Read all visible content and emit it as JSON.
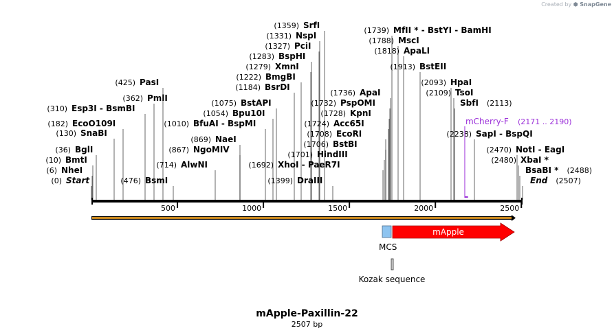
{
  "credit": {
    "prefix": "Created by",
    "brand": "SnapGene"
  },
  "plasmid": {
    "name": "mApple-Paxillin-22",
    "length_label": "2507 bp",
    "length": 2507
  },
  "ruler": {
    "ticks": [
      500,
      1000,
      1500,
      2000,
      2500
    ]
  },
  "sites": [
    {
      "name": "Start",
      "pos": 0,
      "pos_label": "(0)",
      "italic": true
    },
    {
      "name": "NheI",
      "pos": 6,
      "pos_label": "(6)"
    },
    {
      "name": "BmtI",
      "pos": 10,
      "pos_label": "(10)"
    },
    {
      "name": "BglI",
      "pos": 36,
      "pos_label": "(36)"
    },
    {
      "name": "SnaBI",
      "pos": 130,
      "pos_label": "(130)"
    },
    {
      "name": "EcoO109I",
      "pos": 182,
      "pos_label": "(182)"
    },
    {
      "name": "Esp3I  -  BsmBI",
      "pos": 310,
      "pos_label": "(310)"
    },
    {
      "name": "PmlI",
      "pos": 362,
      "pos_label": "(362)"
    },
    {
      "name": "PasI",
      "pos": 425,
      "pos_label": "(425)"
    },
    {
      "name": "BsmI",
      "pos": 476,
      "pos_label": "(476)"
    },
    {
      "name": "AlwNI",
      "pos": 714,
      "pos_label": "(714)"
    },
    {
      "name": "NgoMIV",
      "pos": 867,
      "pos_label": "(867)"
    },
    {
      "name": "NaeI",
      "pos": 869,
      "pos_label": "(869)"
    },
    {
      "name": "BfuAI  -  BspMI",
      "pos": 1010,
      "pos_label": "(1010)"
    },
    {
      "name": "Bpu10I",
      "pos": 1054,
      "pos_label": "(1054)"
    },
    {
      "name": "BstAPI",
      "pos": 1075,
      "pos_label": "(1075)"
    },
    {
      "name": "BsrDI",
      "pos": 1184,
      "pos_label": "(1184)"
    },
    {
      "name": "BmgBI",
      "pos": 1222,
      "pos_label": "(1222)"
    },
    {
      "name": "XmnI",
      "pos": 1279,
      "pos_label": "(1279)"
    },
    {
      "name": "BspHI",
      "pos": 1283,
      "pos_label": "(1283)"
    },
    {
      "name": "PciI",
      "pos": 1327,
      "pos_label": "(1327)"
    },
    {
      "name": "NspI",
      "pos": 1331,
      "pos_label": "(1331)"
    },
    {
      "name": "SrfI",
      "pos": 1359,
      "pos_label": "(1359)"
    },
    {
      "name": "DraIII",
      "pos": 1399,
      "pos_label": "(1399)"
    },
    {
      "name": "XhoI  -  PaeR7I",
      "pos": 1692,
      "pos_label": "(1692)"
    },
    {
      "name": "HindIII",
      "pos": 1701,
      "pos_label": "(1701)"
    },
    {
      "name": "BstBI",
      "pos": 1706,
      "pos_label": "(1706)"
    },
    {
      "name": "EcoRI",
      "pos": 1708,
      "pos_label": "(1708)"
    },
    {
      "name": "Acc65I",
      "pos": 1724,
      "pos_label": "(1724)"
    },
    {
      "name": "KpnI",
      "pos": 1728,
      "pos_label": "(1728)"
    },
    {
      "name": "PspOMI",
      "pos": 1732,
      "pos_label": "(1732)"
    },
    {
      "name": "ApaI",
      "pos": 1736,
      "pos_label": "(1736)"
    },
    {
      "name": "MfII *  -  BstYI  -  BamHI",
      "pos": 1739,
      "pos_label": "(1739)"
    },
    {
      "name": "MscI",
      "pos": 1788,
      "pos_label": "(1788)"
    },
    {
      "name": "ApaLI",
      "pos": 1818,
      "pos_label": "(1818)"
    },
    {
      "name": "BstEII",
      "pos": 1913,
      "pos_label": "(1913)"
    },
    {
      "name": "HpaI",
      "pos": 2093,
      "pos_label": "(2093)"
    },
    {
      "name": "TsoI",
      "pos": 2109,
      "pos_label": "(2109)"
    },
    {
      "name": "SbfI",
      "pos": 2113,
      "pos_label": "(2113)"
    },
    {
      "name": "SapI  -  BspQI",
      "pos": 2238,
      "pos_label": "(2238)"
    },
    {
      "name": "NotI  -  EagI",
      "pos": 2470,
      "pos_label": "(2470)"
    },
    {
      "name": "XbaI *",
      "pos": 2480,
      "pos_label": "(2480)"
    },
    {
      "name": "BsaBI *",
      "pos": 2488,
      "pos_label": "(2488)"
    },
    {
      "name": "End",
      "pos": 2507,
      "pos_label": "(2507)",
      "italic": true
    }
  ],
  "primer": {
    "name": "mCherry-F",
    "range_label": "(2171 .. 2190)",
    "start": 2171,
    "end": 2190,
    "color": "#9b30d9"
  },
  "features": {
    "mcs": {
      "label": "MCS",
      "start": 1692,
      "end": 1745,
      "color": "#8ec4f0"
    },
    "mapple": {
      "label": "mApple",
      "start": 1760,
      "end": 2507,
      "color": "#ff0000"
    },
    "kozak": {
      "label": "Kozak sequence",
      "start": 1745,
      "end": 1760
    }
  },
  "colors": {
    "backbone": "#000000",
    "orf_bar": "#f5a623"
  }
}
